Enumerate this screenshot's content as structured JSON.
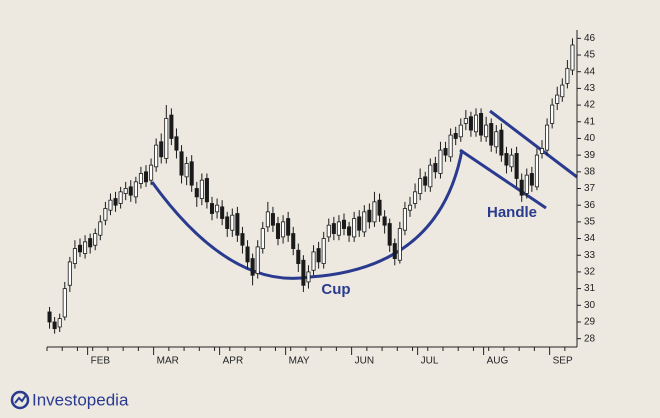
{
  "chart_data": {
    "type": "candlestick",
    "categories": [
      null,
      null,
      null,
      null,
      null,
      null,
      null,
      null,
      "FEB",
      null,
      null,
      null,
      null,
      null,
      null,
      null,
      null,
      null,
      null,
      null,
      null,
      "MAR",
      null,
      null,
      null,
      null,
      null,
      null,
      null,
      null,
      null,
      null,
      null,
      null,
      "APR",
      null,
      null,
      null,
      null,
      null,
      null,
      null,
      null,
      null,
      null,
      null,
      null,
      "MAY",
      null,
      null,
      null,
      null,
      null,
      null,
      null,
      null,
      null,
      null,
      null,
      null,
      "JUN",
      null,
      null,
      null,
      null,
      null,
      null,
      null,
      null,
      null,
      null,
      null,
      null,
      "JUL",
      null,
      null,
      null,
      null,
      null,
      null,
      null,
      null,
      null,
      null,
      null,
      null,
      "AUG",
      null,
      null,
      null,
      null,
      null,
      null,
      null,
      null,
      null,
      null,
      null,
      null,
      "SEP",
      null,
      null,
      null,
      null
    ],
    "open": [
      29.6,
      29.0,
      28.7,
      29.3,
      31.2,
      32.5,
      33.6,
      33.1,
      34.0,
      33.6,
      34.2,
      35.1,
      35.7,
      36.4,
      36.1,
      36.7,
      37.1,
      36.5,
      37.3,
      38.0,
      37.5,
      38.3,
      39.8,
      38.8,
      41.4,
      40.1,
      39.2,
      37.7,
      38.6,
      37.0,
      36.4,
      37.6,
      36.1,
      35.6,
      35.9,
      35.3,
      34.5,
      35.5,
      34.3,
      33.5,
      32.8,
      31.9,
      33.4,
      34.7,
      35.5,
      34.9,
      34.1,
      35.2,
      34.3,
      33.3,
      32.7,
      31.4,
      32.1,
      33.4,
      32.5,
      34.1,
      34.9,
      34.2,
      35.1,
      34.7,
      34.1,
      35.3,
      34.4,
      35.7,
      35.0,
      36.3,
      35.3,
      34.9,
      33.7,
      32.7,
      34.5,
      35.7,
      36.1,
      36.7,
      37.7,
      37.1,
      38.5,
      37.9,
      39.4,
      38.9,
      40.3,
      40.1,
      40.9,
      41.3,
      40.4,
      41.5,
      40.1,
      40.9,
      39.5,
      40.5,
      39.1,
      38.3,
      39.1,
      37.5,
      36.7,
      37.9,
      37.1,
      39.1,
      39.3,
      40.9,
      42.1,
      42.5,
      43.3,
      44.1
    ],
    "high": [
      29.9,
      29.3,
      29.5,
      31.4,
      32.9,
      33.9,
      34.0,
      34.2,
      34.3,
      34.6,
      35.4,
      36.2,
      36.7,
      36.8,
      37.1,
      37.4,
      37.5,
      37.7,
      38.3,
      38.4,
      38.8,
      40.0,
      40.3,
      42.0,
      41.8,
      40.6,
      39.6,
      38.9,
      39.0,
      37.4,
      37.9,
      37.9,
      36.5,
      36.4,
      36.3,
      35.6,
      35.8,
      35.9,
      34.7,
      33.9,
      33.1,
      33.9,
      35.0,
      36.2,
      35.9,
      35.3,
      35.4,
      35.6,
      34.7,
      33.7,
      33.0,
      32.4,
      33.6,
      33.8,
      34.4,
      35.2,
      35.3,
      35.4,
      35.5,
      35.0,
      35.6,
      35.7,
      36.0,
      36.1,
      36.8,
      36.7,
      35.7,
      35.2,
      34.0,
      35.0,
      36.2,
      36.5,
      37.3,
      38.2,
      38.0,
      38.8,
      38.9,
      39.8,
      39.8,
      40.6,
      40.7,
      41.2,
      41.7,
      41.6,
      41.8,
      41.8,
      41.3,
      41.2,
      40.8,
      40.9,
      39.5,
      39.4,
      39.5,
      37.9,
      38.2,
      38.3,
      39.4,
      39.9,
      41.2,
      42.4,
      43.1,
      43.6,
      44.7,
      46.0
    ],
    "low": [
      28.6,
      28.3,
      28.4,
      29.1,
      30.8,
      32.2,
      32.9,
      32.8,
      33.1,
      33.3,
      33.9,
      34.8,
      35.4,
      35.6,
      35.8,
      36.3,
      36.2,
      36.1,
      37.0,
      37.1,
      37.2,
      38.0,
      38.5,
      38.5,
      39.6,
      38.8,
      37.3,
      37.2,
      36.8,
      35.9,
      36.0,
      35.8,
      35.1,
      35.2,
      34.8,
      34.1,
      34.1,
      33.8,
      33.1,
      32.2,
      31.2,
      31.6,
      33.1,
      34.4,
      34.4,
      33.6,
      33.7,
      33.8,
      33.0,
      32.0,
      30.8,
      31.0,
      31.8,
      32.2,
      32.2,
      33.8,
      33.9,
      33.9,
      34.2,
      33.8,
      33.8,
      34.1,
      34.1,
      34.6,
      34.7,
      35.0,
      34.3,
      33.2,
      32.4,
      32.5,
      34.2,
      35.3,
      35.8,
      36.3,
      36.8,
      36.8,
      37.6,
      37.6,
      38.6,
      38.6,
      39.6,
      39.8,
      40.5,
      40.1,
      40.1,
      39.8,
      39.8,
      39.2,
      39.1,
      38.6,
      37.9,
      38.0,
      37.1,
      36.2,
      36.4,
      36.8,
      36.9,
      38.8,
      39.0,
      40.6,
      41.7,
      42.2,
      43.0,
      43.8
    ],
    "close": [
      29.0,
      28.6,
      29.2,
      31.0,
      32.6,
      33.4,
      33.2,
      33.8,
      33.5,
      34.3,
      35.0,
      35.8,
      36.3,
      36.0,
      36.8,
      37.0,
      36.6,
      37.4,
      37.9,
      37.4,
      38.4,
      39.6,
      38.9,
      41.2,
      40.0,
      39.3,
      37.8,
      38.5,
      37.2,
      36.5,
      37.5,
      36.2,
      35.5,
      36.0,
      35.2,
      34.6,
      35.4,
      34.2,
      33.6,
      32.6,
      31.8,
      33.5,
      34.6,
      35.6,
      34.8,
      34.0,
      35.0,
      34.2,
      33.4,
      32.5,
      31.2,
      32.0,
      33.2,
      32.6,
      34.0,
      34.8,
      34.3,
      35.0,
      34.6,
      34.2,
      35.2,
      34.5,
      35.6,
      35.0,
      36.2,
      35.4,
      34.8,
      33.6,
      32.8,
      34.6,
      35.8,
      36.0,
      36.8,
      37.6,
      37.2,
      38.4,
      38.0,
      39.3,
      39.0,
      40.2,
      40.0,
      40.8,
      41.2,
      40.5,
      41.4,
      40.2,
      40.8,
      39.6,
      40.4,
      39.0,
      38.4,
      39.0,
      37.6,
      36.6,
      37.8,
      37.2,
      39.0,
      39.4,
      40.8,
      42.0,
      42.6,
      43.2,
      44.2,
      45.6
    ],
    "ylim": [
      27.5,
      46.5
    ],
    "yticks": [
      28,
      29,
      30,
      31,
      32,
      33,
      34,
      35,
      36,
      37,
      38,
      39,
      40,
      41,
      42,
      43,
      44,
      45,
      46
    ],
    "annotations": [
      "Cup",
      "Handle"
    ],
    "up_color": "#ffffff",
    "down_color": "#1a1a1a",
    "annotation_color": "#2a3b8f"
  },
  "logo": "Investopedia"
}
